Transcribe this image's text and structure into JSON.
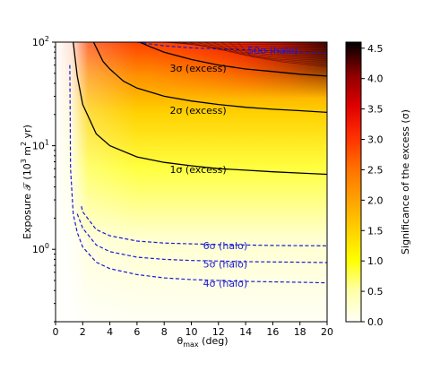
{
  "chart_data": {
    "type": "heatmap",
    "title": "",
    "xlabel": "θ_max (deg)",
    "xlabel_main": "θ",
    "xlabel_sub": "max",
    "xlabel_unit": " (deg)",
    "ylabel": "Exposure 𝒯 (10³ m² yr)",
    "ylabel_main": "Exposure 𝒯 (10",
    "ylabel_exp": "3",
    "ylabel_mid": " m",
    "ylabel_exp2": "2",
    "ylabel_end": " yr)",
    "xlim": [
      0,
      20
    ],
    "ylim": [
      0.2,
      100
    ],
    "yscale": "log",
    "x_ticks": [
      "0",
      "2",
      "4",
      "6",
      "8",
      "10",
      "12",
      "14",
      "16",
      "18",
      "20"
    ],
    "y_ticks": [
      {
        "base": "10",
        "exp": "0",
        "value": 1
      },
      {
        "base": "10",
        "exp": "1",
        "value": 10
      },
      {
        "base": "10",
        "exp": "2",
        "value": 100
      }
    ],
    "colorbar": {
      "label": "Significance of the excess (σ)",
      "range": [
        0,
        4.6
      ],
      "ticks": [
        "0.0",
        "0.5",
        "1.0",
        "1.5",
        "2.0",
        "2.5",
        "3.0",
        "3.5",
        "4.0",
        "4.5"
      ],
      "colormap": [
        "#fffff5",
        "#ffff99",
        "#ffff00",
        "#ffbf00",
        "#ff8000",
        "#ff3300",
        "#e60000",
        "#990000",
        "#400000",
        "#000000"
      ]
    },
    "grid": false,
    "excess_contours": [
      {
        "label": "1σ (excess)",
        "text": "1σ (excess)",
        "sigma": 1,
        "color": "#000000",
        "style": "solid",
        "x": [
          1.3,
          1.6,
          2,
          3,
          4,
          6,
          8,
          10,
          12,
          14,
          16,
          18,
          20
        ],
        "y": [
          100,
          47,
          25,
          13,
          10,
          7.8,
          6.9,
          6.4,
          6.0,
          5.8,
          5.6,
          5.45,
          5.3
        ]
      },
      {
        "label": "2σ (excess)",
        "text": "2σ (excess)",
        "sigma": 2,
        "color": "#000000",
        "style": "solid",
        "x": [
          2.8,
          3.5,
          4,
          5,
          6,
          8,
          10,
          12,
          14,
          16,
          18,
          20
        ],
        "y": [
          100,
          65,
          55,
          42,
          36,
          30,
          27,
          25,
          23.5,
          22.5,
          21.8,
          21
        ]
      },
      {
        "label": "3σ (excess)",
        "text": "3σ (excess)",
        "sigma": 3,
        "color": "#000000",
        "style": "solid",
        "x": [
          6.2,
          7,
          8,
          10,
          12,
          14,
          16,
          18,
          20
        ],
        "y": [
          100,
          90,
          80,
          68,
          60,
          55,
          52,
          49,
          47
        ]
      }
    ],
    "halo_contours": [
      {
        "label": "4σ (halo)",
        "text": "4σ (halo)",
        "sigma": 4,
        "color": "#1a1ad6",
        "style": "dashed",
        "x": [
          1.05,
          1.1,
          1.3,
          1.6,
          2,
          3,
          4,
          6,
          8,
          10,
          12,
          14,
          16,
          18,
          20
        ],
        "y": [
          60,
          6,
          2.2,
          1.45,
          1.05,
          0.75,
          0.65,
          0.57,
          0.53,
          0.51,
          0.5,
          0.49,
          0.485,
          0.48,
          0.475
        ]
      },
      {
        "label": "5σ (halo)",
        "text": "5σ (halo)",
        "sigma": 5,
        "color": "#1a1ad6",
        "style": "dashed",
        "x": [
          1.6,
          2,
          3,
          4,
          6,
          8,
          10,
          12,
          14,
          16,
          18,
          20
        ],
        "y": [
          2.2,
          1.6,
          1.1,
          0.95,
          0.84,
          0.8,
          0.78,
          0.77,
          0.76,
          0.755,
          0.75,
          0.745
        ]
      },
      {
        "label": "6σ (halo)",
        "text": "6σ (halo)",
        "sigma": 6,
        "color": "#1a1ad6",
        "style": "dashed",
        "x": [
          1.9,
          2,
          3,
          4,
          6,
          8,
          10,
          12,
          14,
          16,
          18,
          20
        ],
        "y": [
          2.6,
          2.3,
          1.55,
          1.35,
          1.2,
          1.15,
          1.13,
          1.11,
          1.1,
          1.09,
          1.085,
          1.08
        ]
      },
      {
        "label": "50σ (halo)",
        "text": "50σ (halo)",
        "sigma": 50,
        "color": "#1a1ad6",
        "style": "dashed",
        "x": [
          6,
          8,
          10,
          12,
          14,
          16,
          18,
          20
        ],
        "y": [
          100,
          92,
          88,
          86,
          84,
          82,
          80,
          79
        ]
      }
    ]
  }
}
